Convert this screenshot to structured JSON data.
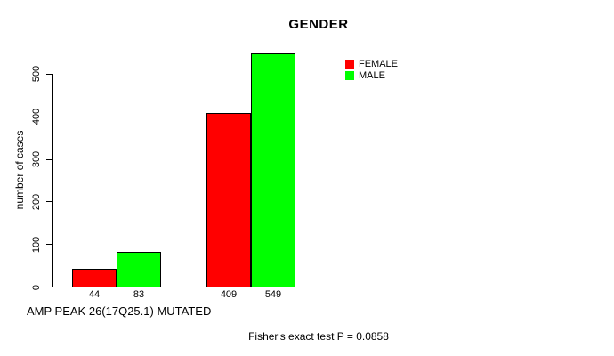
{
  "chart_data": {
    "type": "bar",
    "title": "GENDER",
    "ylabel": "number of cases",
    "xlabel": "AMP PEAK 26(17Q25.1) MUTATED",
    "annotation": "Fisher's exact test P = 0.0858",
    "categories": [
      "",
      ""
    ],
    "series": [
      {
        "name": "FEMALE",
        "color": "#ff0000",
        "values": [
          44,
          409
        ]
      },
      {
        "name": "MALE",
        "color": "#00ff00",
        "values": [
          83,
          549
        ]
      }
    ],
    "yticks": [
      0,
      100,
      200,
      300,
      400,
      500
    ],
    "ylim": [
      0,
      550
    ],
    "grid": false,
    "legend_position": "top-right-inset",
    "bar_value_labels": true,
    "background": "#ffffff",
    "axis_color": "#000000"
  }
}
